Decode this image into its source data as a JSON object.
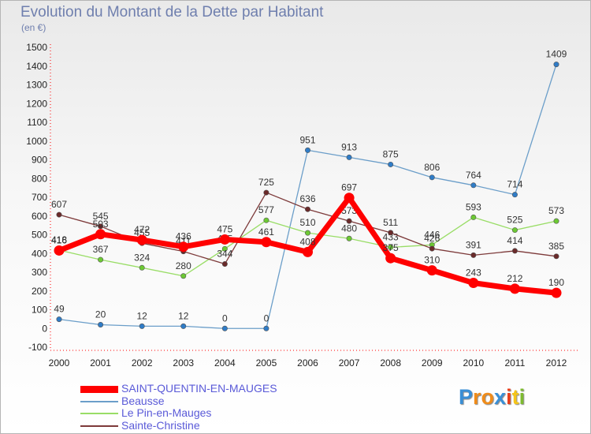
{
  "title": "Evolution du Montant de la Dette par Habitant",
  "unit": "(en €)",
  "logo": {
    "letters": [
      "P",
      "r",
      "o",
      "x",
      "i",
      "t",
      "i"
    ],
    "colors": [
      "#3a8fd6",
      "#f08c1a",
      "#f08c1a",
      "#3a8fd6",
      "#e83e1c",
      "#f5c518",
      "#7dba2f"
    ]
  },
  "chart_data": {
    "type": "line",
    "x": [
      "2000",
      "2001",
      "2002",
      "2003",
      "2004",
      "2005",
      "2006",
      "2007",
      "2008",
      "2009",
      "2010",
      "2011",
      "2012"
    ],
    "ylim": [
      -100,
      1500
    ],
    "yticks": [
      -100,
      0,
      100,
      200,
      300,
      400,
      500,
      600,
      700,
      800,
      900,
      1000,
      1100,
      1200,
      1300,
      1400,
      1500
    ],
    "grid": false,
    "legend_position": "bottom-left",
    "series": [
      {
        "name": "Beausse",
        "color": "#6b9ec9",
        "point": "#2f7cc7",
        "values": [
          49,
          20,
          12,
          12,
          0,
          0,
          951,
          913,
          875,
          806,
          764,
          714,
          1409
        ]
      },
      {
        "name": "Le Pin-en-Mauges",
        "color": "#99dd66",
        "point": "#6cc933",
        "values": [
          418,
          367,
          324,
          280,
          425,
          577,
          510,
          480,
          433,
          446,
          593,
          525,
          573
        ]
      },
      {
        "name": "Sainte-Christine",
        "color": "#7d3a3a",
        "point": "#6a2a2a",
        "values": [
          607,
          545,
          455,
          411,
          344,
          725,
          636,
          573,
          511,
          426,
          391,
          414,
          385
        ]
      },
      {
        "name": "SAINT-QUENTIN-EN-MAUGES",
        "color": "#ff0000",
        "point": "#ff0000",
        "values": [
          416,
          503,
          472,
          436,
          475,
          461,
          408,
          697,
          375,
          310,
          243,
          212,
          190
        ]
      }
    ],
    "legend": [
      "SAINT-QUENTIN-EN-MAUGES",
      "Beausse",
      "Le Pin-en-Mauges",
      "Sainte-Christine"
    ]
  }
}
